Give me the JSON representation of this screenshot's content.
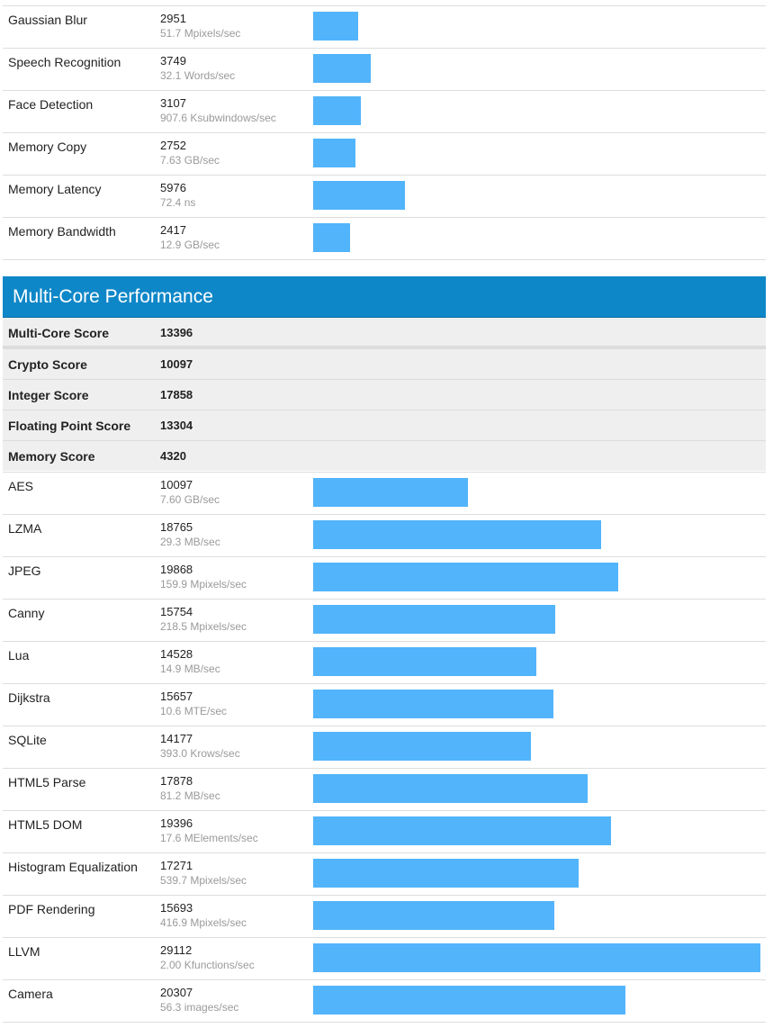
{
  "single_core_tail": [
    {
      "name": "Gaussian Blur",
      "score": "2951",
      "unit": "51.7 Mpixels/sec"
    },
    {
      "name": "Speech Recognition",
      "score": "3749",
      "unit": "32.1 Words/sec"
    },
    {
      "name": "Face Detection",
      "score": "3107",
      "unit": "907.6 Ksubwindows/sec"
    },
    {
      "name": "Memory Copy",
      "score": "2752",
      "unit": "7.63 GB/sec"
    },
    {
      "name": "Memory Latency",
      "score": "5976",
      "unit": "72.4 ns"
    },
    {
      "name": "Memory Bandwidth",
      "score": "2417",
      "unit": "12.9 GB/sec"
    }
  ],
  "multi_core": {
    "title": "Multi-Core Performance",
    "summary": [
      {
        "name": "Multi-Core Score",
        "score": "13396"
      },
      {
        "name": "Crypto Score",
        "score": "10097"
      },
      {
        "name": "Integer Score",
        "score": "17858"
      },
      {
        "name": "Floating Point Score",
        "score": "13304"
      },
      {
        "name": "Memory Score",
        "score": "4320"
      }
    ],
    "workloads": [
      {
        "name": "AES",
        "score": "10097",
        "unit": "7.60 GB/sec"
      },
      {
        "name": "LZMA",
        "score": "18765",
        "unit": "29.3 MB/sec"
      },
      {
        "name": "JPEG",
        "score": "19868",
        "unit": "159.9 Mpixels/sec"
      },
      {
        "name": "Canny",
        "score": "15754",
        "unit": "218.5 Mpixels/sec"
      },
      {
        "name": "Lua",
        "score": "14528",
        "unit": "14.9 MB/sec"
      },
      {
        "name": "Dijkstra",
        "score": "15657",
        "unit": "10.6 MTE/sec"
      },
      {
        "name": "SQLite",
        "score": "14177",
        "unit": "393.0 Krows/sec"
      },
      {
        "name": "HTML5 Parse",
        "score": "17878",
        "unit": "81.2 MB/sec"
      },
      {
        "name": "HTML5 DOM",
        "score": "19396",
        "unit": "17.6 MElements/sec"
      },
      {
        "name": "Histogram Equalization",
        "score": "17271",
        "unit": "539.7 Mpixels/sec"
      },
      {
        "name": "PDF Rendering",
        "score": "15693",
        "unit": "416.9 Mpixels/sec"
      },
      {
        "name": "LLVM",
        "score": "29112",
        "unit": "2.00 Kfunctions/sec"
      },
      {
        "name": "Camera",
        "score": "20307",
        "unit": "56.3 images/sec"
      }
    ]
  },
  "bar_max_score": 29112,
  "colors": {
    "bar": "#52b4fb",
    "header": "#0e87c8"
  }
}
